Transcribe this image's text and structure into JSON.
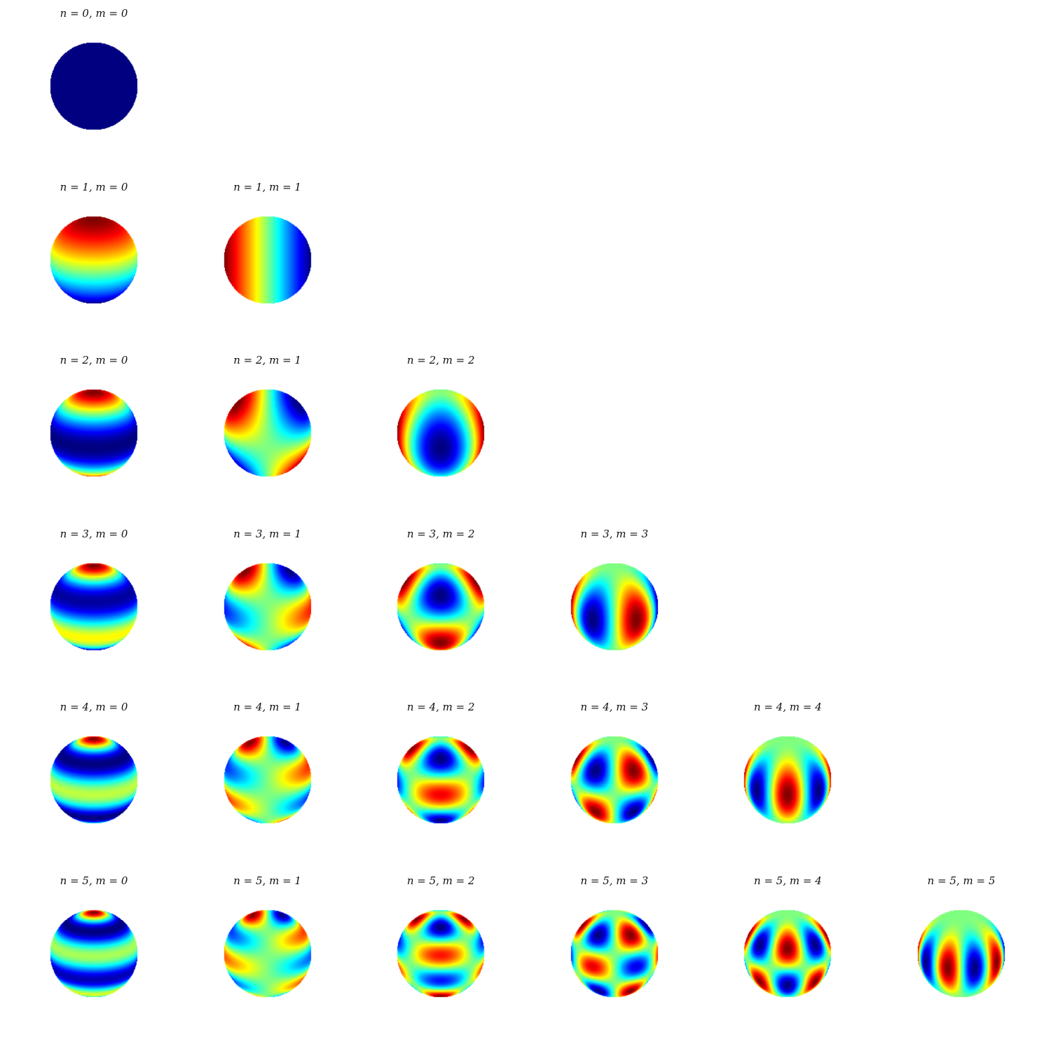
{
  "chart_data": {
    "type": "heatmap",
    "description_of_panels": "spherical harmonic surface plots, jet colormap",
    "colormap": "jet",
    "grid": false,
    "view": {
      "azimuth_deg": 0,
      "elevation_deg": 20
    },
    "panels": [
      {
        "n": 0,
        "m": 0,
        "title": "n = 0, m = 0"
      },
      {
        "n": 1,
        "m": 0,
        "title": "n = 1, m = 0"
      },
      {
        "n": 1,
        "m": 1,
        "title": "n = 1, m = 1"
      },
      {
        "n": 2,
        "m": 0,
        "title": "n = 2, m = 0"
      },
      {
        "n": 2,
        "m": 1,
        "title": "n = 2, m = 1"
      },
      {
        "n": 2,
        "m": 2,
        "title": "n = 2, m = 2"
      },
      {
        "n": 3,
        "m": 0,
        "title": "n = 3, m = 0"
      },
      {
        "n": 3,
        "m": 1,
        "title": "n = 3, m = 1"
      },
      {
        "n": 3,
        "m": 2,
        "title": "n = 3, m = 2"
      },
      {
        "n": 3,
        "m": 3,
        "title": "n = 3, m = 3"
      },
      {
        "n": 4,
        "m": 0,
        "title": "n = 4, m = 0"
      },
      {
        "n": 4,
        "m": 1,
        "title": "n = 4, m = 1"
      },
      {
        "n": 4,
        "m": 2,
        "title": "n = 4, m = 2"
      },
      {
        "n": 4,
        "m": 3,
        "title": "n = 4, m = 3"
      },
      {
        "n": 4,
        "m": 4,
        "title": "n = 4, m = 4"
      },
      {
        "n": 5,
        "m": 0,
        "title": "n = 5, m = 0"
      },
      {
        "n": 5,
        "m": 1,
        "title": "n = 5, m = 1"
      },
      {
        "n": 5,
        "m": 2,
        "title": "n = 5, m = 2"
      },
      {
        "n": 5,
        "m": 3,
        "title": "n = 5, m = 3"
      },
      {
        "n": 5,
        "m": 4,
        "title": "n = 5, m = 4"
      },
      {
        "n": 5,
        "m": 5,
        "title": "n = 5, m = 5"
      }
    ]
  }
}
